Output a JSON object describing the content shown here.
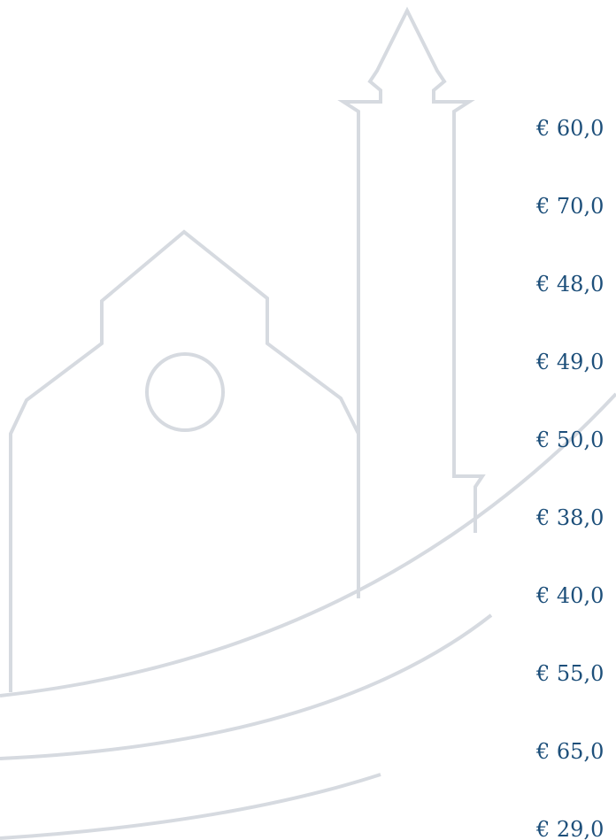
{
  "prices": [
    "€ 60,0",
    "€ 70,0",
    "€ 48,0",
    "€ 49,0",
    "€ 50,0",
    "€ 38,0",
    "€ 40,0",
    "€ 55,0",
    "€ 65,0",
    "€ 29,0"
  ]
}
